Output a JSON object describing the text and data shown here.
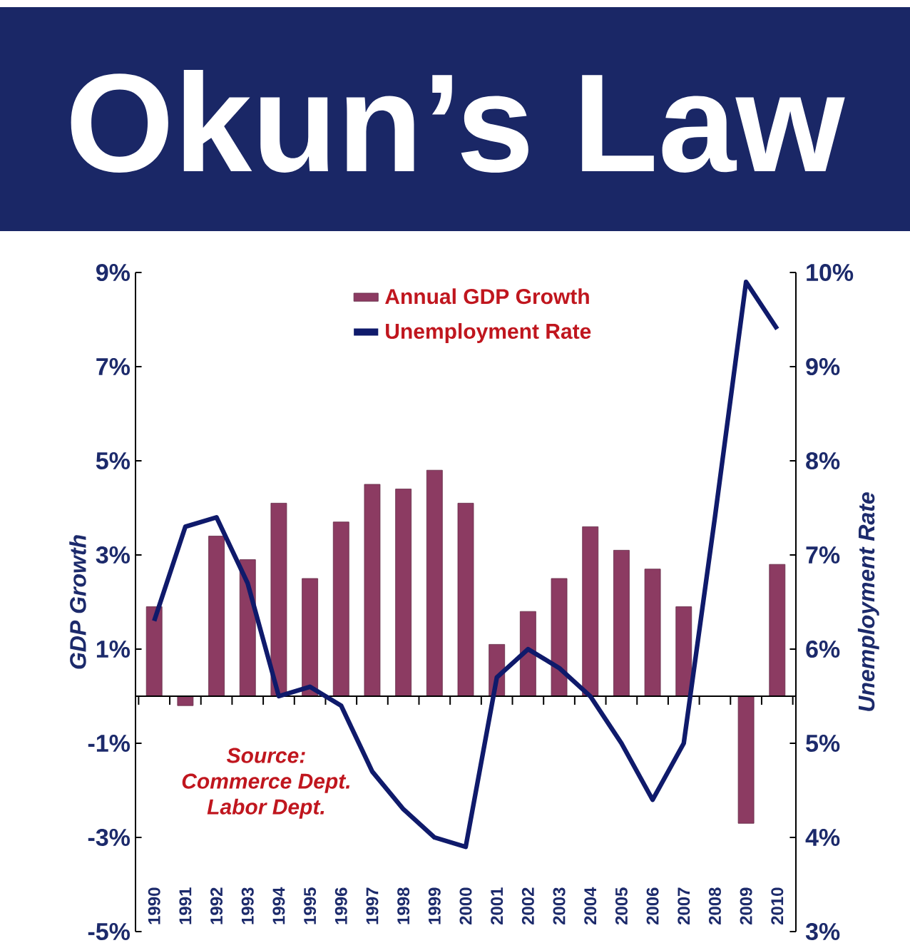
{
  "chart_data": {
    "type": "bar",
    "title": "Okun’s Law",
    "ylabel": "GDP Growth",
    "y2label": "Unemployment Rate",
    "categories": [
      "1990",
      "1991",
      "1992",
      "1993",
      "1994",
      "1995",
      "1996",
      "1997",
      "1998",
      "1999",
      "2000",
      "2001",
      "2002",
      "2003",
      "2004",
      "2005",
      "2006",
      "2007",
      "2008",
      "2009",
      "2010"
    ],
    "series": [
      {
        "name": "Annual GDP Growth",
        "color": "#8c3b62",
        "values": [
          1.9,
          -0.2,
          3.4,
          2.9,
          4.1,
          2.5,
          3.7,
          4.5,
          4.4,
          4.8,
          4.1,
          1.1,
          1.8,
          2.5,
          3.6,
          3.1,
          2.7,
          1.9,
          null,
          -2.7,
          2.8
        ]
      },
      {
        "name": "Unemployment Rate",
        "type": "line",
        "axis": "y2",
        "color": "#0f1a6b",
        "values": [
          6.3,
          7.3,
          7.4,
          6.7,
          5.5,
          5.6,
          5.4,
          4.7,
          4.3,
          4.0,
          3.9,
          5.7,
          6.0,
          5.8,
          5.5,
          5.0,
          4.4,
          5.0,
          7.4,
          9.9,
          9.4
        ]
      }
    ],
    "ylim": [
      -5,
      9
    ],
    "yticks": [
      {
        "value": -5,
        "label": "-5%"
      },
      {
        "value": -3,
        "label": "-3%"
      },
      {
        "value": -1,
        "label": "-1%"
      },
      {
        "value": 1,
        "label": "1%"
      },
      {
        "value": 3,
        "label": "3%"
      },
      {
        "value": 5,
        "label": "5%"
      },
      {
        "value": 7,
        "label": "7%"
      },
      {
        "value": 9,
        "label": "9%"
      }
    ],
    "y2lim": [
      3,
      10
    ],
    "y2ticks": [
      {
        "value": 3,
        "label": "3%"
      },
      {
        "value": 4,
        "label": "4%"
      },
      {
        "value": 5,
        "label": "5%"
      },
      {
        "value": 6,
        "label": "6%"
      },
      {
        "value": 7,
        "label": "7%"
      },
      {
        "value": 8,
        "label": "8%"
      },
      {
        "value": 9,
        "label": "9%"
      },
      {
        "value": 10,
        "label": "10%"
      }
    ],
    "legend": "top",
    "annotations": [
      "Source:",
      "Commerce Dept.",
      "Labor Dept."
    ]
  }
}
